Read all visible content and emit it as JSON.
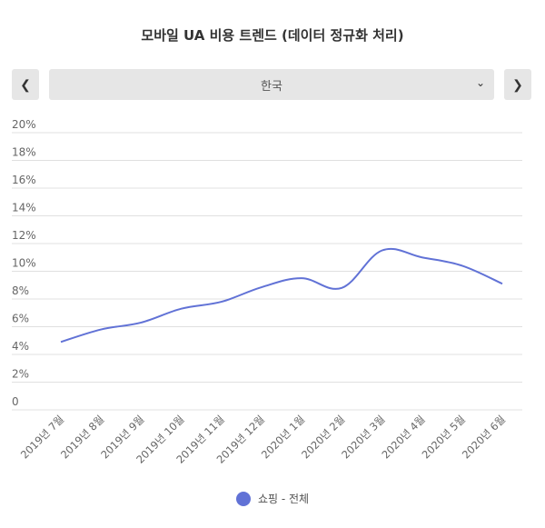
{
  "title": "모바일 UA 비용 트렌드 (데이터 정규화 처리)",
  "selector": {
    "value": "한국",
    "prev_icon": "chevron-left-icon",
    "next_icon": "chevron-right-icon",
    "dropdown_icon": "chevron-down-icon"
  },
  "chart_data": {
    "type": "line",
    "title": "모바일 UA 비용 트렌드 (데이터 정규화 처리)",
    "categories": [
      "2019년 7월",
      "2019년 8월",
      "2019년 9월",
      "2019년 10월",
      "2019년 11월",
      "2019년 12월",
      "2020년 1월",
      "2020년 2월",
      "2020년 3월",
      "2020년 4월",
      "2020년 5월",
      "2020년 6월"
    ],
    "series": [
      {
        "name": "쇼핑 - 전체",
        "color": "#6172d6",
        "values": [
          4.9,
          5.8,
          6.3,
          7.3,
          7.8,
          8.85,
          9.5,
          8.8,
          11.5,
          11.0,
          10.4,
          9.1
        ]
      }
    ],
    "ylim": [
      0,
      20
    ],
    "yticks": [
      "0",
      "2%",
      "4%",
      "6%",
      "8%",
      "10%",
      "12%",
      "14%",
      "16%",
      "18%",
      "20%"
    ],
    "grid": true,
    "legend": "bottom"
  }
}
